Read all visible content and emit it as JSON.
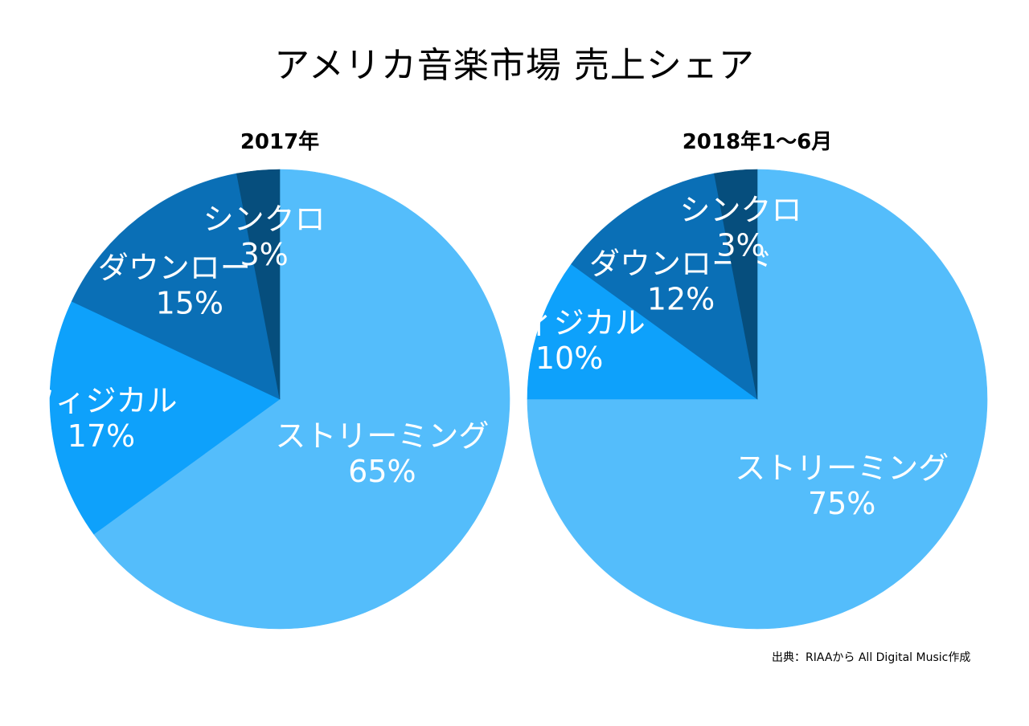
{
  "title": "アメリカ音楽市場 売上シェア",
  "source": "出典：RIAAから All Digital Music作成",
  "chart_data": [
    {
      "type": "pie",
      "title": "2017年",
      "slices": [
        {
          "label": "ストリーミング",
          "value": 65,
          "value_label": "65%",
          "color": "#54bdfb"
        },
        {
          "label": "フィジカル",
          "value": 17,
          "value_label": "17%",
          "color": "#0ea1fb"
        },
        {
          "label": "ダウンロード",
          "value": 15,
          "value_label": "15%",
          "color": "#0a6fb6"
        },
        {
          "label": "シンクロ",
          "value": 3,
          "value_label": "3%",
          "color": "#064e7d"
        }
      ],
      "start": "12 o'clock",
      "direction": "clockwise"
    },
    {
      "type": "pie",
      "title": "2018年1〜6月",
      "slices": [
        {
          "label": "ストリーミング",
          "value": 75,
          "value_label": "75%",
          "color": "#54bdfb"
        },
        {
          "label": "フィジカル",
          "value": 10,
          "value_label": "10%",
          "color": "#0ea1fb"
        },
        {
          "label": "ダウンロード",
          "value": 12,
          "value_label": "12%",
          "color": "#0a6fb6"
        },
        {
          "label": "シンクロ",
          "value": 3,
          "value_label": "3%",
          "color": "#064e7d"
        }
      ],
      "start": "12 o'clock",
      "direction": "clockwise"
    }
  ]
}
